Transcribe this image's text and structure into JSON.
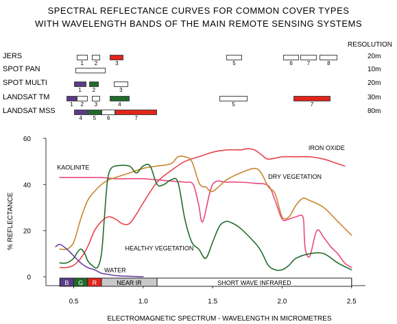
{
  "title": {
    "line1": "SPECTRAL REFLECTANCE CURVES FOR COMMON COVER TYPES",
    "line2": "WITH WAVELENGTH BANDS OF THE MAIN REMOTE SENSING SYSTEMS"
  },
  "resolution_header": "RESOLUTION",
  "colors": {
    "violet": "#5b3a87",
    "green": "#1f6b2a",
    "red": "#e2241b",
    "white": "#ffffff",
    "kaolinite": "#e8477a",
    "iron_oxide": "#e8434b",
    "dry_vegetation": "#c8842d",
    "healthy_vegetation": "#1f6b2a",
    "water": "#6b3fa0"
  },
  "systems": [
    {
      "name": "JERS",
      "resolution": "20m",
      "bands": [
        {
          "start": 0.52,
          "end": 0.6,
          "label": "1",
          "color": "white"
        },
        {
          "start": 0.63,
          "end": 0.69,
          "label": "2",
          "color": "white"
        },
        {
          "start": 0.76,
          "end": 0.86,
          "label": "3",
          "color": "red"
        },
        {
          "start": 1.6,
          "end": 1.71,
          "label": "5",
          "color": "white"
        },
        {
          "start": 2.01,
          "end": 2.12,
          "label": "6",
          "color": "white"
        },
        {
          "start": 2.13,
          "end": 2.25,
          "label": "7",
          "color": "white"
        },
        {
          "start": 2.27,
          "end": 2.4,
          "label": "8",
          "color": "white"
        }
      ]
    },
    {
      "name": "SPOT PAN",
      "resolution": "10m",
      "bands": [
        {
          "start": 0.51,
          "end": 0.73,
          "label": "",
          "color": "white"
        }
      ]
    },
    {
      "name": "SPOT MULTI",
      "resolution": "20m",
      "bands": [
        {
          "start": 0.5,
          "end": 0.59,
          "label": "1",
          "color": "violet"
        },
        {
          "start": 0.61,
          "end": 0.68,
          "label": "2",
          "color": "green"
        },
        {
          "start": 0.79,
          "end": 0.89,
          "label": "3",
          "color": "white"
        }
      ]
    },
    {
      "name": "LANDSAT TM",
      "resolution": "30m",
      "bands": [
        {
          "start": 0.45,
          "end": 0.52,
          "label": "1",
          "color": "violet"
        },
        {
          "start": 0.52,
          "end": 0.6,
          "label": "2",
          "color": "white"
        },
        {
          "start": 0.63,
          "end": 0.69,
          "label": "3",
          "color": "white"
        },
        {
          "start": 0.76,
          "end": 0.9,
          "label": "4",
          "color": "green"
        },
        {
          "start": 1.55,
          "end": 1.75,
          "label": "5",
          "color": "white"
        },
        {
          "start": 2.08,
          "end": 2.35,
          "label": "7",
          "color": "red"
        }
      ]
    },
    {
      "name": "LANDSAT MSS",
      "resolution": "80m",
      "bands": [
        {
          "start": 0.5,
          "end": 0.6,
          "label": "4",
          "color": "violet"
        },
        {
          "start": 0.6,
          "end": 0.7,
          "label": "5",
          "color": "green"
        },
        {
          "start": 0.7,
          "end": 0.8,
          "label": "6",
          "color": "white"
        },
        {
          "start": 0.8,
          "end": 1.1,
          "label": "7",
          "color": "red"
        }
      ]
    }
  ],
  "chart_data": {
    "type": "line",
    "xlabel": "ELECTROMAGNETIC SPECTRUM  -  WAVELENGTH IN MICROMETRES",
    "ylabel": "% REFLECTANCE",
    "xlim": [
      0.3,
      2.6
    ],
    "ylim": [
      0,
      60
    ],
    "x_ticks": [
      "0.5",
      "1.0",
      "1.5",
      "2.0",
      "2.5"
    ],
    "y_ticks": [
      "0",
      "20",
      "40",
      "60"
    ],
    "grid": false,
    "spectrum_bar": [
      {
        "label": "B",
        "start": 0.4,
        "end": 0.5,
        "color": "violet"
      },
      {
        "label": "G",
        "start": 0.5,
        "end": 0.6,
        "color": "green"
      },
      {
        "label": "R",
        "start": 0.6,
        "end": 0.7,
        "color": "red"
      },
      {
        "label": "NEAR IR",
        "start": 0.7,
        "end": 1.1,
        "color": "#c9c9c9"
      },
      {
        "label": "SHORT WAVE INFRARED",
        "start": 1.1,
        "end": 2.5,
        "color": "white"
      }
    ],
    "series": [
      {
        "name": "KAOLINITE",
        "color": "kaolinite",
        "x": [
          0.4,
          0.5,
          0.6,
          0.7,
          0.8,
          0.9,
          1.0,
          1.1,
          1.2,
          1.3,
          1.36,
          1.4,
          1.43,
          1.5,
          1.6,
          1.7,
          1.8,
          1.9,
          1.95,
          2.0,
          2.05,
          2.1,
          2.15,
          2.16,
          2.17,
          2.2,
          2.25,
          2.3,
          2.35,
          2.4,
          2.45,
          2.5
        ],
        "y": [
          43,
          43,
          43,
          43,
          42.5,
          42.5,
          42.5,
          42,
          41.5,
          41,
          40,
          31,
          24,
          40,
          41,
          41,
          40.5,
          39.5,
          33,
          25,
          25,
          26,
          26,
          17,
          11,
          9,
          20,
          17,
          13,
          10,
          6,
          4
        ]
      },
      {
        "name": "IRON OXIDE",
        "color": "iron_oxide",
        "x": [
          0.4,
          0.45,
          0.5,
          0.55,
          0.6,
          0.65,
          0.7,
          0.75,
          0.8,
          0.85,
          0.9,
          0.95,
          1.0,
          1.1,
          1.2,
          1.3,
          1.4,
          1.5,
          1.6,
          1.7,
          1.75,
          1.8,
          1.85,
          1.9,
          2.0,
          2.1,
          2.2,
          2.3,
          2.4,
          2.45
        ],
        "y": [
          4,
          4,
          5,
          8,
          13,
          20,
          24,
          26,
          25,
          23,
          23,
          27,
          32,
          41,
          46,
          50,
          52,
          54,
          55,
          55,
          55.5,
          55,
          53,
          51,
          52,
          52,
          52,
          51,
          49,
          48
        ]
      },
      {
        "name": "DRY VEGETATION",
        "color": "dry_vegetation",
        "x": [
          0.4,
          0.45,
          0.5,
          0.55,
          0.6,
          0.65,
          0.7,
          0.75,
          0.8,
          0.9,
          1.0,
          1.1,
          1.2,
          1.25,
          1.3,
          1.35,
          1.4,
          1.43,
          1.45,
          1.5,
          1.6,
          1.7,
          1.8,
          1.85,
          1.9,
          1.95,
          2.0,
          2.05,
          2.1,
          2.15,
          2.2,
          2.3,
          2.4,
          2.5
        ],
        "y": [
          12,
          12,
          15,
          25,
          33,
          37,
          40,
          42,
          43,
          45,
          47,
          48,
          49,
          52,
          52,
          50,
          41,
          39,
          39,
          37,
          42,
          45,
          47,
          45,
          39,
          36,
          26,
          26,
          31,
          34,
          33,
          30,
          24,
          18
        ]
      },
      {
        "name": "HEALTHY VEGETATION",
        "color": "healthy_vegetation",
        "x": [
          0.4,
          0.45,
          0.5,
          0.52,
          0.55,
          0.58,
          0.6,
          0.63,
          0.67,
          0.7,
          0.72,
          0.74,
          0.76,
          0.8,
          0.9,
          0.95,
          1.0,
          1.05,
          1.1,
          1.15,
          1.2,
          1.25,
          1.3,
          1.35,
          1.4,
          1.45,
          1.5,
          1.55,
          1.6,
          1.65,
          1.7,
          1.8,
          1.85,
          1.9,
          1.95,
          2.0,
          2.05,
          2.1,
          2.2,
          2.3,
          2.4,
          2.5
        ],
        "y": [
          6,
          6,
          8,
          10,
          12,
          10,
          7,
          5,
          4,
          10,
          25,
          40,
          46,
          48,
          48,
          45,
          48,
          48,
          40,
          40,
          42,
          41,
          25,
          15,
          12,
          8,
          15,
          22,
          24,
          23,
          21,
          15,
          11,
          5,
          3,
          3,
          5,
          8,
          10,
          10,
          6,
          3
        ]
      },
      {
        "name": "WATER",
        "color": "water",
        "x": [
          0.37,
          0.4,
          0.45,
          0.5,
          0.55,
          0.6,
          0.65,
          0.7,
          0.75,
          0.8,
          0.85,
          0.9,
          0.95,
          1.0
        ],
        "y": [
          13,
          14,
          12,
          9,
          6,
          4,
          3,
          1.5,
          1,
          0.5,
          0.3,
          0.2,
          0.1,
          0
        ]
      }
    ]
  },
  "series_labels": [
    {
      "text": "KAOLINITE",
      "x": 0.38,
      "y": 46.5
    },
    {
      "text": "IRON OXIDE",
      "x": 2.19,
      "y": 55
    },
    {
      "text": "DRY VEGETATION",
      "x": 1.9,
      "y": 42.5
    },
    {
      "text": "HEALTHY VEGETATION",
      "x": 0.87,
      "y": 11.5
    },
    {
      "text": "WATER",
      "x": 0.72,
      "y": 2
    }
  ]
}
